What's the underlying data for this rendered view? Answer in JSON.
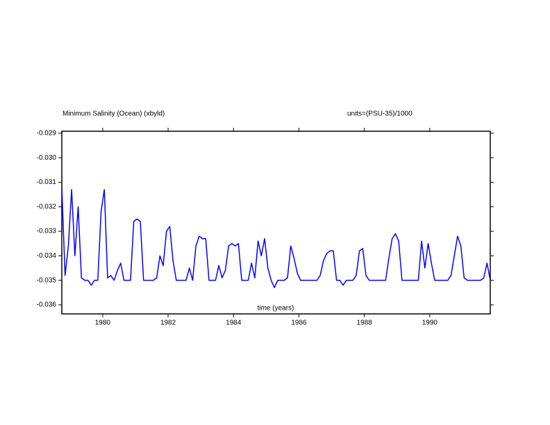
{
  "chart_data": {
    "type": "line",
    "title": "Minimum Salinity (Ocean) (xbyld)",
    "subtitle": "units=(PSU-35)/1000",
    "x_label": "time (years)",
    "color": "#0000ff",
    "xlim": [
      1978.75,
      1991.85
    ],
    "xticks": [
      1980,
      1982,
      1984,
      1986,
      1988,
      1990
    ],
    "ylim": [
      -0.03637,
      -0.02892
    ],
    "yticks": [
      -0.029,
      {
        "value": -0.03,
        "label": "-0.030"
      },
      -0.031,
      -0.032,
      -0.033,
      -0.034,
      -0.035,
      -0.036
    ],
    "x": [
      1978.75,
      1978.85,
      1978.95,
      1979.05,
      1979.15,
      1979.25,
      1979.35,
      1979.45,
      1979.55,
      1979.65,
      1979.75,
      1979.85,
      1979.95,
      1980.05,
      1980.15,
      1980.25,
      1980.35,
      1980.45,
      1980.55,
      1980.65,
      1980.75,
      1980.85,
      1980.95,
      1981.05,
      1981.15,
      1981.25,
      1981.35,
      1981.45,
      1981.55,
      1981.65,
      1981.75,
      1981.85,
      1981.95,
      1982.05,
      1982.15,
      1982.25,
      1982.35,
      1982.45,
      1982.55,
      1982.65,
      1982.75,
      1982.85,
      1982.95,
      1983.05,
      1983.15,
      1983.25,
      1983.35,
      1983.45,
      1983.55,
      1983.65,
      1983.75,
      1983.85,
      1983.95,
      1984.05,
      1984.15,
      1984.25,
      1984.35,
      1984.45,
      1984.55,
      1984.65,
      1984.75,
      1984.85,
      1984.95,
      1985.05,
      1985.15,
      1985.25,
      1985.35,
      1985.45,
      1985.55,
      1985.65,
      1985.75,
      1985.85,
      1985.95,
      1986.05,
      1986.15,
      1986.25,
      1986.35,
      1986.45,
      1986.55,
      1986.65,
      1986.75,
      1986.85,
      1986.95,
      1987.05,
      1987.15,
      1987.25,
      1987.35,
      1987.45,
      1987.55,
      1987.65,
      1987.75,
      1987.85,
      1987.95,
      1988.05,
      1988.15,
      1988.25,
      1988.35,
      1988.45,
      1988.55,
      1988.65,
      1988.75,
      1988.85,
      1988.95,
      1989.05,
      1989.15,
      1989.25,
      1989.35,
      1989.45,
      1989.55,
      1989.65,
      1989.75,
      1989.85,
      1989.95,
      1990.05,
      1990.15,
      1990.25,
      1990.35,
      1990.45,
      1990.55,
      1990.65,
      1990.75,
      1990.85,
      1990.95,
      1991.05,
      1991.15,
      1991.25,
      1991.35,
      1991.45,
      1991.55,
      1991.65,
      1991.75,
      1991.85
    ],
    "values": [
      -0.0312,
      -0.0348,
      -0.0336,
      -0.0313,
      -0.034,
      -0.032,
      -0.0349,
      -0.035,
      -0.035,
      -0.0352,
      -0.035,
      -0.035,
      -0.0322,
      -0.0313,
      -0.0349,
      -0.0348,
      -0.035,
      -0.0346,
      -0.0343,
      -0.035,
      -0.035,
      -0.035,
      -0.0326,
      -0.0325,
      -0.0326,
      -0.035,
      -0.035,
      -0.035,
      -0.035,
      -0.0349,
      -0.034,
      -0.0344,
      -0.033,
      -0.0328,
      -0.0342,
      -0.035,
      -0.035,
      -0.035,
      -0.035,
      -0.0345,
      -0.035,
      -0.0336,
      -0.0332,
      -0.0333,
      -0.0333,
      -0.035,
      -0.035,
      -0.035,
      -0.0344,
      -0.0349,
      -0.0346,
      -0.0336,
      -0.0335,
      -0.0336,
      -0.0335,
      -0.035,
      -0.035,
      -0.035,
      -0.0343,
      -0.0349,
      -0.0334,
      -0.034,
      -0.0333,
      -0.0345,
      -0.035,
      -0.0353,
      -0.035,
      -0.035,
      -0.035,
      -0.0349,
      -0.0336,
      -0.0341,
      -0.0347,
      -0.035,
      -0.035,
      -0.035,
      -0.035,
      -0.035,
      -0.035,
      -0.0348,
      -0.0342,
      -0.0339,
      -0.0338,
      -0.0338,
      -0.035,
      -0.035,
      -0.0352,
      -0.035,
      -0.035,
      -0.035,
      -0.0348,
      -0.0338,
      -0.0337,
      -0.0348,
      -0.035,
      -0.035,
      -0.035,
      -0.035,
      -0.035,
      -0.035,
      -0.0341,
      -0.0333,
      -0.0331,
      -0.0334,
      -0.035,
      -0.035,
      -0.035,
      -0.035,
      -0.035,
      -0.035,
      -0.0334,
      -0.0345,
      -0.0335,
      -0.0343,
      -0.035,
      -0.035,
      -0.035,
      -0.035,
      -0.035,
      -0.0348,
      -0.034,
      -0.0332,
      -0.0336,
      -0.0349,
      -0.035,
      -0.035,
      -0.035,
      -0.035,
      -0.035,
      -0.0349,
      -0.0343,
      -0.035
    ]
  }
}
